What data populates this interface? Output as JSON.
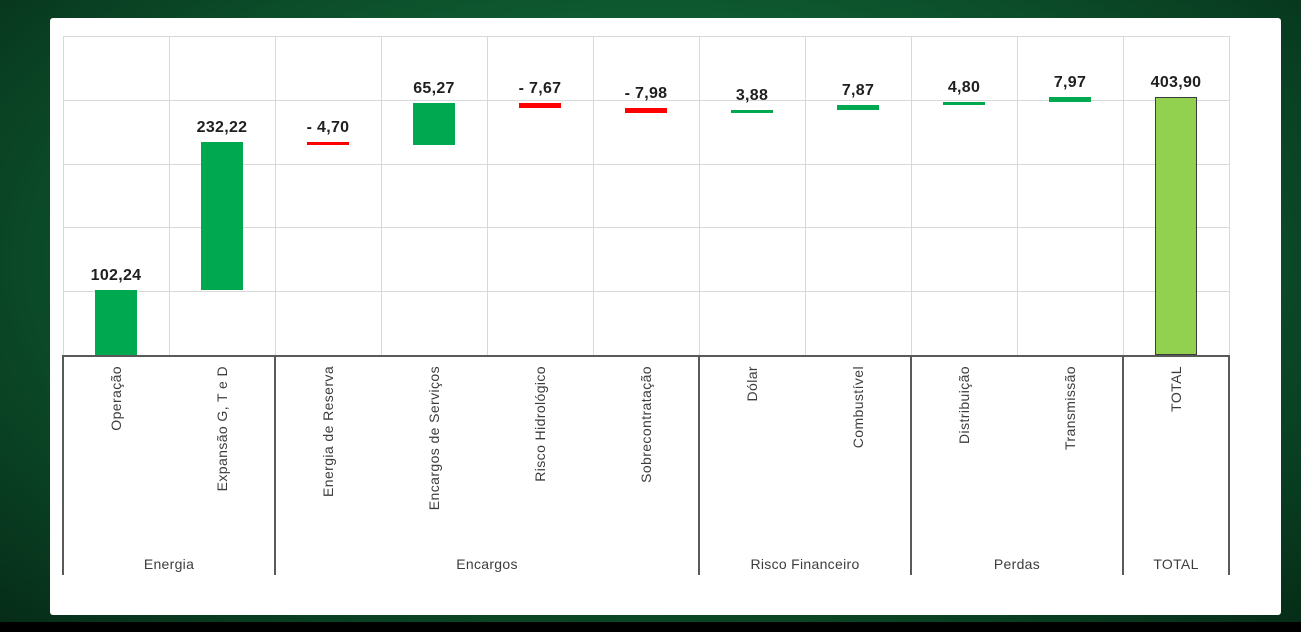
{
  "frame": {
    "background": "#000000",
    "border_green_outer": "#07321b",
    "border_green_inner": "#15713f",
    "panel_background": "#ffffff"
  },
  "chart_data": {
    "type": "bar",
    "subtype": "waterfall",
    "title": "",
    "legend": "none",
    "axis": {
      "y_min": 0,
      "y_max": 500,
      "y_gridline_step": 100,
      "y_tick_labels_visible": false,
      "grid": "on"
    },
    "groups": [
      {
        "label": "Energia",
        "span": 2
      },
      {
        "label": "Encargos",
        "span": 4
      },
      {
        "label": "Risco Financeiro",
        "span": 2
      },
      {
        "label": "Perdas",
        "span": 2
      },
      {
        "label": "TOTAL",
        "span": 1
      }
    ],
    "bars": [
      {
        "category": "Operação",
        "value": 102.24,
        "label": "102,24",
        "kind": "increase"
      },
      {
        "category": "Expansão G, T e D",
        "value": 232.22,
        "label": "232,22",
        "kind": "increase"
      },
      {
        "category": "Energia de Reserva",
        "value": -4.7,
        "label": "- 4,70",
        "kind": "decrease"
      },
      {
        "category": "Encargos de Serviços",
        "value": 65.27,
        "label": "65,27",
        "kind": "increase"
      },
      {
        "category": "Risco Hidrológico",
        "value": -7.67,
        "label": "- 7,67",
        "kind": "decrease"
      },
      {
        "category": "Sobrecontratação",
        "value": -7.98,
        "label": "- 7,98",
        "kind": "decrease"
      },
      {
        "category": "Dólar",
        "value": 3.88,
        "label": "3,88",
        "kind": "increase"
      },
      {
        "category": "Combustível",
        "value": 7.87,
        "label": "7,87",
        "kind": "increase"
      },
      {
        "category": "Distribuição",
        "value": 4.8,
        "label": "4,80",
        "kind": "increase"
      },
      {
        "category": "Transmissão",
        "value": 7.97,
        "label": "7,97",
        "kind": "increase"
      },
      {
        "category": "TOTAL",
        "value": 403.9,
        "label": "403,90",
        "kind": "total"
      }
    ],
    "colors": {
      "increase": "#00a94f",
      "decrease": "#fe0000",
      "total": "#92d050",
      "total_border": "#3c3c3c",
      "gridline": "#d9d9d9",
      "axis_line": "#595959",
      "value_text": "#1f1f1f",
      "category_text": "#3d3d3d"
    }
  }
}
